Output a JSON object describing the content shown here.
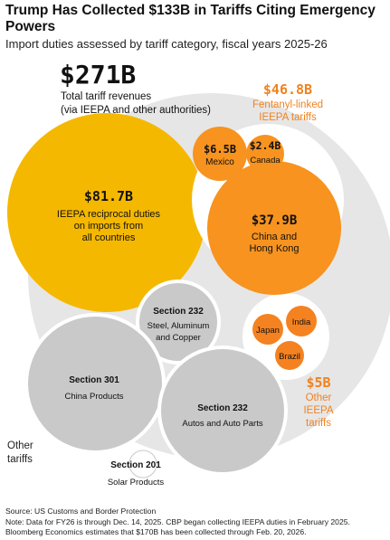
{
  "title": "Trump Has Collected $133B in Tariffs Citing Emergency Powers",
  "subtitle": "Import duties assessed by tariff category, fiscal years 2025-26",
  "colors": {
    "outer": "#e6e6e6",
    "ieepa_reciprocal": "#f5b800",
    "fentanyl": "#f7931e",
    "other_ieepa": "#f58220",
    "other_tariffs": "#c9c9c9",
    "annotation_orange": "#f0821e",
    "text_dark": "#1a1a1a"
  },
  "chart_data": {
    "type": "bubble",
    "title": "Trump Has Collected $133B in Tariffs Citing Emergency Powers",
    "subtitle": "Import duties assessed by tariff category, fiscal years 2025-26",
    "unit": "USD billions",
    "total": {
      "value_label": "$271B",
      "label": "Total tariff revenues (via IEEPA and other authorities)",
      "value": 271
    },
    "groups": [
      {
        "name": "Fentanyl-linked IEEPA tariffs",
        "value_label": "$46.8B",
        "value": 46.8
      },
      {
        "name": "Other IEEPA tariffs",
        "value_label": "$5B",
        "value": 5
      },
      {
        "name": "Other tariffs",
        "value_label": "",
        "value": null
      }
    ],
    "bubbles": [
      {
        "id": "reciprocal",
        "group": "IEEPA reciprocal",
        "value": 81.7,
        "value_label": "$81.7B",
        "label": "IEEPA reciprocal duties on imports from all countries",
        "color": "#f5b800"
      },
      {
        "id": "china_hk",
        "group": "Fentanyl-linked IEEPA tariffs",
        "value": 37.9,
        "value_label": "$37.9B",
        "label": "China and Hong Kong",
        "color": "#f7931e"
      },
      {
        "id": "mexico",
        "group": "Fentanyl-linked IEEPA tariffs",
        "value": 6.5,
        "value_label": "$6.5B",
        "label": "Mexico",
        "color": "#f7931e"
      },
      {
        "id": "canada",
        "group": "Fentanyl-linked IEEPA tariffs",
        "value": 2.4,
        "value_label": "$2.4B",
        "label": "Canada",
        "color": "#f7931e"
      },
      {
        "id": "japan",
        "group": "Other IEEPA tariffs",
        "value": null,
        "value_label": "",
        "label": "Japan",
        "color": "#f58220"
      },
      {
        "id": "india",
        "group": "Other IEEPA tariffs",
        "value": null,
        "value_label": "",
        "label": "India",
        "color": "#f58220"
      },
      {
        "id": "brazil",
        "group": "Other IEEPA tariffs",
        "value": null,
        "value_label": "",
        "label": "Brazil",
        "color": "#f58220"
      },
      {
        "id": "s232_steel",
        "group": "Other tariffs",
        "value": null,
        "value_label": "Section 232",
        "label": "Steel, Aluminum and Copper",
        "color": "#c9c9c9"
      },
      {
        "id": "s301_china",
        "group": "Other tariffs",
        "value": null,
        "value_label": "Section 301",
        "label": "China Products",
        "color": "#c9c9c9"
      },
      {
        "id": "s232_autos",
        "group": "Other tariffs",
        "value": null,
        "value_label": "Section 232",
        "label": "Autos and Auto Parts",
        "color": "#c9c9c9"
      },
      {
        "id": "s201_solar",
        "group": "Other tariffs",
        "value": null,
        "value_label": "Section 201",
        "label": "Solar Products",
        "color": "#ffffff"
      }
    ]
  },
  "labels": {
    "total_value": "$271B",
    "total_line1": "Total tariff revenues",
    "total_line2": "(via IEEPA and other authorities)",
    "fentanyl_value": "$46.8B",
    "fentanyl_line1": "Fentanyl-linked",
    "fentanyl_line2": "IEEPA tariffs",
    "other_ieepa_value": "$5B",
    "other_ieepa_line1": "Other",
    "other_ieepa_line2": "IEEPA",
    "other_ieepa_line3": "tariffs",
    "other_tariffs_line1": "Other",
    "other_tariffs_line2": "tariffs",
    "reciprocal_value": "$81.7B",
    "reciprocal_line1": "IEEPA reciprocal duties",
    "reciprocal_line2": "on imports from",
    "reciprocal_line3": "all countries",
    "china_value": "$37.9B",
    "china_line1": "China and",
    "china_line2": "Hong Kong",
    "mexico_value": "$6.5B",
    "mexico_label": "Mexico",
    "canada_value": "$2.4B",
    "canada_label": "Canada",
    "japan_label": "Japan",
    "india_label": "India",
    "brazil_label": "Brazil",
    "s232_steel_title": "Section 232",
    "s232_steel_line1": "Steel, Aluminum",
    "s232_steel_line2": "and Copper",
    "s301_title": "Section 301",
    "s301_line1": "China Products",
    "s232_autos_title": "Section 232",
    "s232_autos_line1": "Autos and Auto Parts",
    "s201_title": "Section 201",
    "s201_line1": "Solar Products"
  },
  "footnote": {
    "source": "Source: US Customs and Border Protection",
    "note_line1": "Note: Data for FY26 is through Dec. 14, 2025. CBP began collecting IEEPA duties in February 2025.",
    "note_line2": "Bloomberg Economics estimates that $170B has been collected through Feb. 20, 2026."
  }
}
